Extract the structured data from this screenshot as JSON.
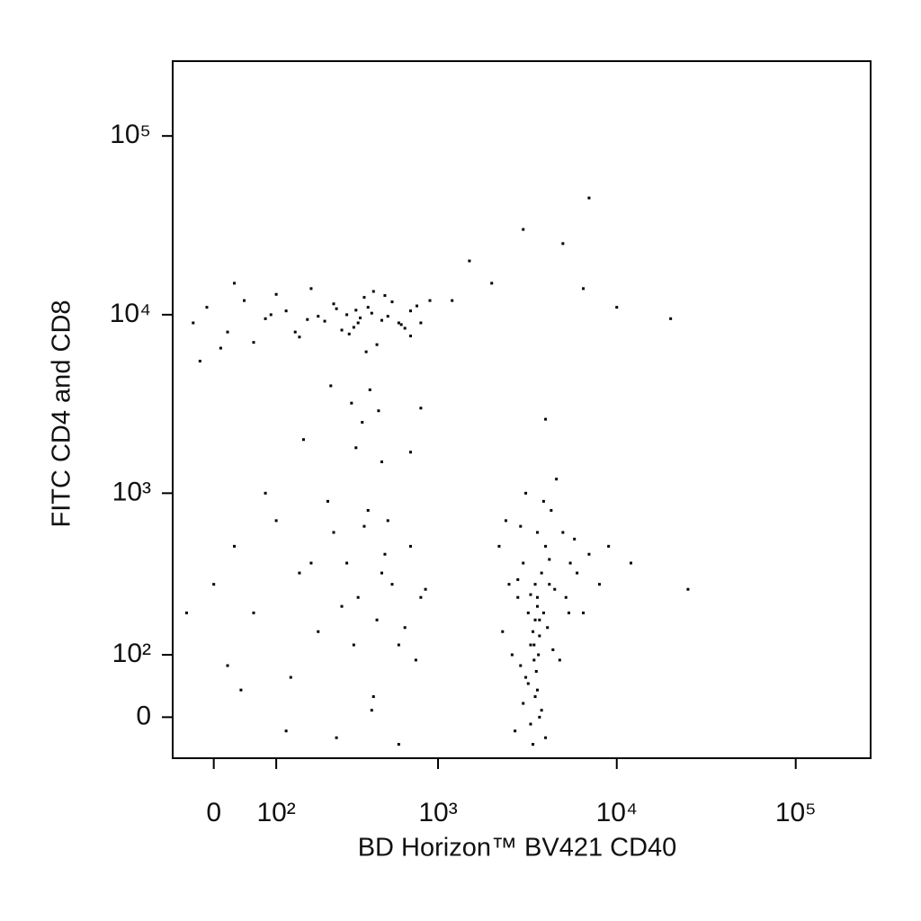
{
  "chart_data": {
    "type": "scatter",
    "x_label": "BD Horizon™ BV421 CD40",
    "y_label": "FITC CD4 and CD8",
    "xscale": "biexponential",
    "yscale": "biexponential",
    "xlim": [
      -62,
      262144
    ],
    "ylim": [
      -62,
      262144
    ],
    "xticks": [
      0,
      {
        "value": 100,
        "label": "10²"
      },
      {
        "value": 1000,
        "label": "10³"
      },
      {
        "value": 10000,
        "label": "10⁴"
      },
      {
        "value": 100000,
        "label": "10⁵"
      }
    ],
    "yticks": [
      0,
      {
        "value": 100,
        "label": "10²"
      },
      {
        "value": 1000,
        "label": "10³"
      },
      {
        "value": 10000,
        "label": "10⁴"
      },
      {
        "value": 100000,
        "label": "10⁵"
      }
    ],
    "color": "#000000",
    "x": [
      -30,
      -10,
      20,
      45,
      80,
      120,
      150,
      200,
      250,
      300,
      330,
      350,
      380,
      420,
      480,
      550,
      620,
      700,
      800,
      900,
      10,
      60,
      100,
      140,
      180,
      220,
      260,
      310,
      360,
      400,
      450,
      500,
      600,
      700,
      -20,
      30,
      90,
      170,
      280,
      340,
      390,
      430,
      520,
      650,
      760,
      240,
      320,
      370,
      410,
      460,
      2500,
      2800,
      3000,
      3200,
      3400,
      3500,
      3600,
      3800,
      4000,
      4200,
      4500,
      5000,
      5500,
      6000,
      7000,
      8000,
      2600,
      2900,
      3100,
      3300,
      3450,
      3550,
      3700,
      3900,
      4100,
      4400,
      4800,
      5200,
      6500,
      2200,
      3000,
      3300,
      3500,
      3600,
      3700,
      3800,
      4000,
      3400,
      3200,
      2700,
      2400,
      2900,
      3600,
      4300,
      5800,
      9000,
      12000,
      3500,
      3600,
      3700,
      3100,
      3900,
      4600,
      2300,
      5400,
      3450,
      3650,
      3300,
      2800,
      4200,
      0,
      30,
      60,
      100,
      150,
      200,
      250,
      300,
      350,
      400,
      450,
      500,
      550,
      600,
      700,
      800,
      20,
      80,
      130,
      180,
      230,
      280,
      330,
      380,
      430,
      480,
      520,
      650,
      750,
      850,
      -40,
      40,
      120,
      260,
      420,
      600,
      160,
      340,
      480,
      700,
      1500,
      2000,
      3000,
      5000,
      7000,
      10000,
      20000,
      25000,
      6500,
      1200,
      800,
      4000
    ],
    "values": [
      9000,
      11000,
      8000,
      12000,
      9500,
      10500,
      7500,
      9800,
      11500,
      10000,
      8500,
      9000,
      12500,
      10200,
      9300,
      11800,
      8800,
      10500,
      9000,
      12000,
      6500,
      7000,
      13000,
      8000,
      14000,
      9200,
      10800,
      7800,
      9600,
      11000,
      6800,
      12800,
      9000,
      7600,
      5500,
      15000,
      10000,
      9400,
      8200,
      10600,
      6200,
      13500,
      9800,
      8400,
      11200,
      4000,
      3200,
      2500,
      3800,
      2900,
      300,
      250,
      400,
      200,
      150,
      180,
      220,
      350,
      500,
      300,
      280,
      600,
      400,
      350,
      450,
      300,
      100,
      80,
      60,
      120,
      90,
      70,
      140,
      200,
      160,
      110,
      90,
      250,
      200,
      500,
      20,
      -10,
      30,
      40,
      0,
      10,
      -30,
      -40,
      50,
      -20,
      700,
      650,
      600,
      800,
      550,
      500,
      400,
      300,
      250,
      180,
      1000,
      900,
      1200,
      150,
      200,
      120,
      100,
      260,
      320,
      420,
      300,
      500,
      200,
      700,
      350,
      150,
      600,
      400,
      250,
      800,
      180,
      450,
      300,
      120,
      500,
      250,
      80,
      1000,
      60,
      400,
      900,
      220,
      120,
      650,
      30,
      350,
      700,
      160,
      90,
      280,
      200,
      40,
      -20,
      -30,
      10,
      -40,
      2000,
      1800,
      1500,
      1700,
      20000,
      15000,
      30000,
      25000,
      45000,
      11000,
      9500,
      280,
      14000,
      12000,
      3000,
      2600
    ]
  }
}
